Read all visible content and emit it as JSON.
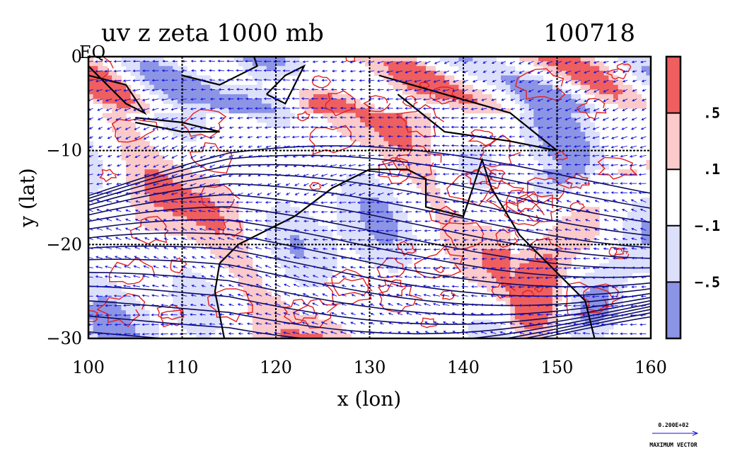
{
  "chart_data": {
    "type": "heatmap",
    "title_left": "uv z zeta 1000 mb",
    "title_right": "100718",
    "xlabel": "x (lon)",
    "ylabel": "y (lat)",
    "xlim": [
      100,
      160
    ],
    "ylim": [
      -30,
      0
    ],
    "x_ticks": [
      100,
      110,
      120,
      130,
      140,
      150,
      160
    ],
    "x_tick_labels": [
      "100",
      "110",
      "120",
      "130",
      "140",
      "150",
      "160"
    ],
    "y_ticks": [
      0,
      -10,
      -20,
      -30
    ],
    "y_tick_labels": [
      "0",
      "−10",
      "−20",
      "−30"
    ],
    "y_tick_suffix_top": "EQ",
    "grid": true,
    "colorbar": {
      "levels": [
        0.5,
        0.1,
        -0.1,
        -0.5
      ],
      "labels": [
        ".5",
        ".1",
        "−.1",
        "−.5"
      ],
      "colors": [
        "#ef5f5f",
        "#fbcaca",
        "#ffffff",
        "#dde0fb",
        "#8c94e6"
      ]
    },
    "layers": [
      "vorticity shading",
      "geopotential height contours",
      "coastlines",
      "wind vectors"
    ],
    "reference_vector": {
      "value_label": "0.200E+02",
      "caption": "MAXIMUM VECTOR"
    }
  },
  "colors": {
    "positive_strong": "#ef5f5f",
    "positive_weak": "#fbcaca",
    "negative_weak": "#dde0fb",
    "negative_strong": "#8c94e6",
    "contour_red": "#e02020",
    "vector_blue": "#1010dd",
    "coast": "#000000"
  }
}
